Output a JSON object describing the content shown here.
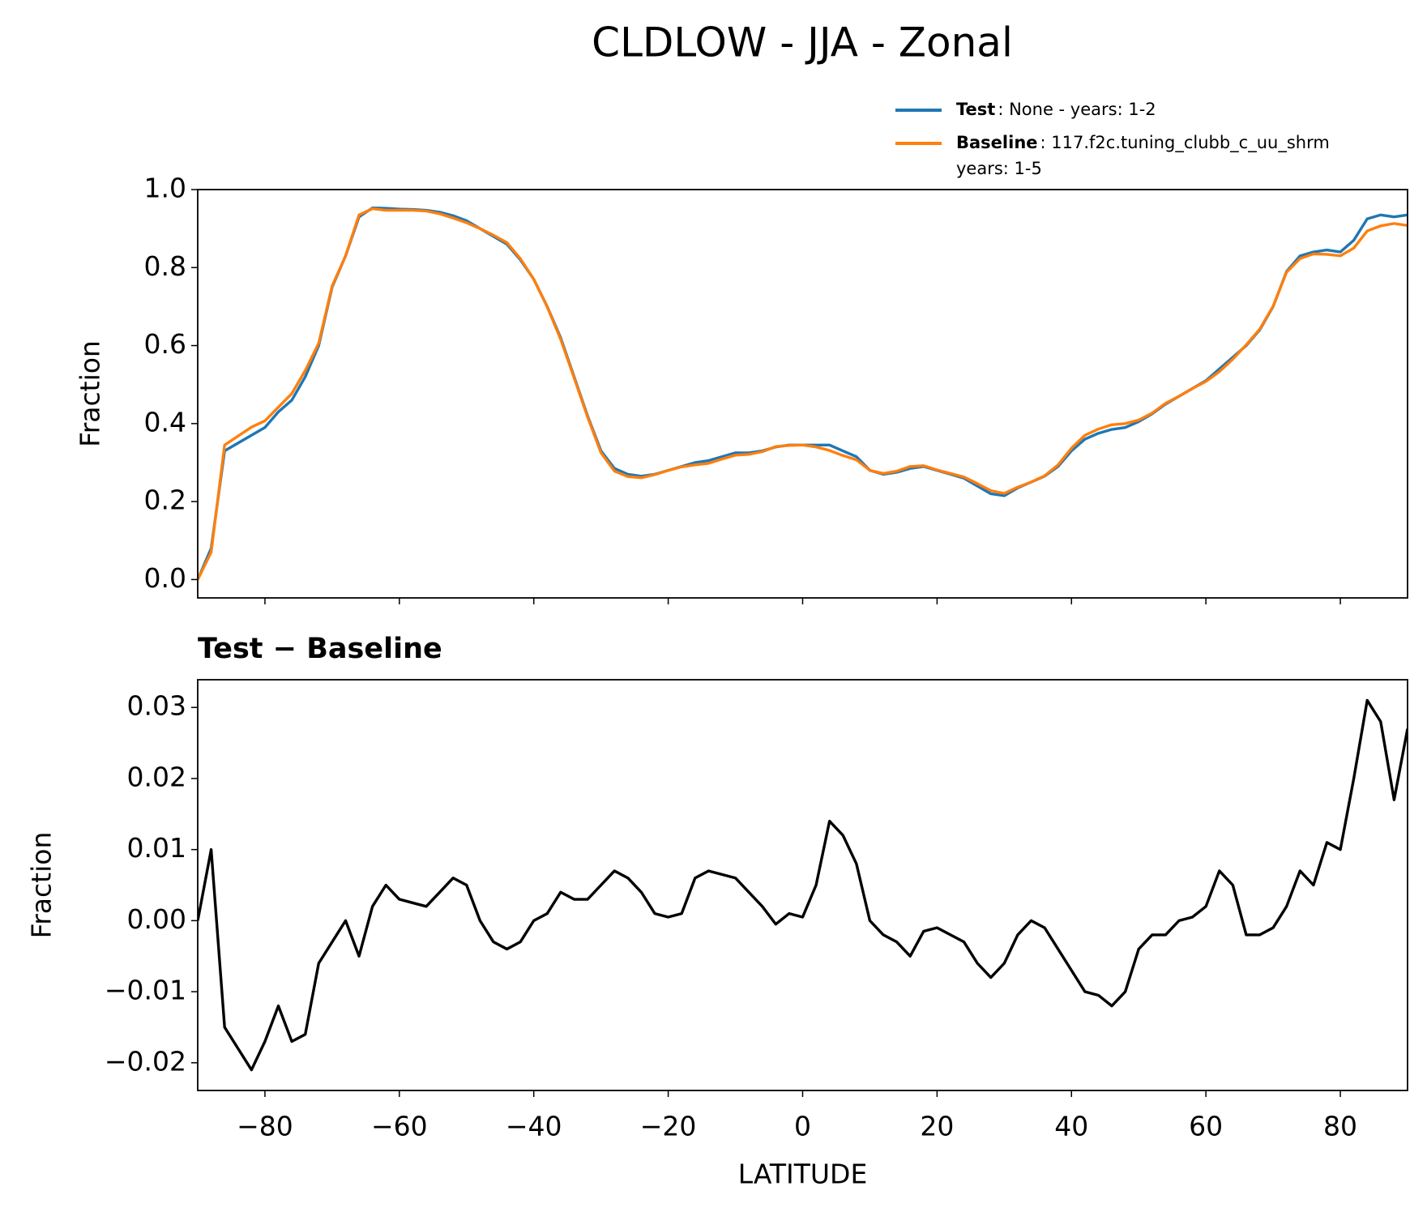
{
  "title": "CLDLOW - JJA - Zonal",
  "chart_data": [
    {
      "type": "line",
      "ylabel": "Fraction",
      "x": [
        -90,
        -88,
        -86,
        -84,
        -82,
        -80,
        -78,
        -76,
        -74,
        -72,
        -70,
        -68,
        -66,
        -64,
        -62,
        -60,
        -58,
        -56,
        -54,
        -52,
        -50,
        -48,
        -46,
        -44,
        -42,
        -40,
        -38,
        -36,
        -34,
        -32,
        -30,
        -28,
        -26,
        -24,
        -22,
        -20,
        -18,
        -16,
        -14,
        -12,
        -10,
        -8,
        -6,
        -4,
        -2,
        0,
        2,
        4,
        6,
        8,
        10,
        12,
        14,
        16,
        18,
        20,
        22,
        24,
        26,
        28,
        30,
        32,
        34,
        36,
        38,
        40,
        42,
        44,
        46,
        48,
        50,
        52,
        54,
        56,
        58,
        60,
        62,
        64,
        66,
        68,
        70,
        72,
        74,
        76,
        78,
        80,
        82,
        84,
        86,
        88,
        90
      ],
      "series": [
        {
          "name": "Test",
          "legend_text": [
            ": None - years: 1-2"
          ],
          "color": "#1f77b4",
          "values": [
            0.0,
            0.08,
            0.33,
            0.35,
            0.37,
            0.39,
            0.43,
            0.46,
            0.52,
            0.6,
            0.75,
            0.83,
            0.93,
            0.953,
            0.952,
            0.95,
            0.949,
            0.947,
            0.942,
            0.933,
            0.92,
            0.9,
            0.88,
            0.86,
            0.82,
            0.77,
            0.7,
            0.62,
            0.52,
            0.42,
            0.33,
            0.285,
            0.27,
            0.265,
            0.27,
            0.28,
            0.29,
            0.3,
            0.305,
            0.315,
            0.325,
            0.325,
            0.33,
            0.34,
            0.345,
            0.345,
            0.345,
            0.345,
            0.33,
            0.315,
            0.28,
            0.27,
            0.275,
            0.285,
            0.29,
            0.28,
            0.27,
            0.26,
            0.24,
            0.22,
            0.215,
            0.235,
            0.25,
            0.265,
            0.29,
            0.33,
            0.36,
            0.375,
            0.385,
            0.39,
            0.405,
            0.425,
            0.45,
            0.47,
            0.49,
            0.51,
            0.54,
            0.57,
            0.6,
            0.64,
            0.7,
            0.79,
            0.83,
            0.84,
            0.845,
            0.84,
            0.87,
            0.925,
            0.935,
            0.93,
            0.935
          ]
        },
        {
          "name": "Baseline",
          "legend_text": [
            ": 117.f2c.tuning_clubb_c_uu_shrm",
            "years: 1-5"
          ],
          "color": "#ff7f0e",
          "values": [
            0.0,
            0.07,
            0.345,
            0.368,
            0.391,
            0.407,
            0.442,
            0.477,
            0.536,
            0.606,
            0.753,
            0.83,
            0.935,
            0.951,
            0.947,
            0.947,
            0.947,
            0.945,
            0.938,
            0.927,
            0.915,
            0.9,
            0.883,
            0.864,
            0.823,
            0.77,
            0.699,
            0.616,
            0.517,
            0.417,
            0.325,
            0.278,
            0.264,
            0.261,
            0.269,
            0.28,
            0.289,
            0.294,
            0.298,
            0.309,
            0.319,
            0.321,
            0.328,
            0.341,
            0.344,
            0.345,
            0.34,
            0.331,
            0.318,
            0.307,
            0.28,
            0.272,
            0.278,
            0.29,
            0.292,
            0.281,
            0.272,
            0.263,
            0.246,
            0.228,
            0.221,
            0.237,
            0.25,
            0.266,
            0.294,
            0.337,
            0.37,
            0.386,
            0.397,
            0.4,
            0.409,
            0.427,
            0.452,
            0.47,
            0.49,
            0.508,
            0.533,
            0.565,
            0.602,
            0.642,
            0.701,
            0.788,
            0.823,
            0.835,
            0.834,
            0.83,
            0.85,
            0.894,
            0.907,
            0.913,
            0.908
          ]
        }
      ],
      "xlim": [
        -90,
        90
      ],
      "xticks": [
        -80,
        -60,
        -40,
        -20,
        0,
        20,
        40,
        60,
        80
      ],
      "show_xtick_labels": false,
      "ylim": [
        -0.047,
        1.0
      ],
      "yticks": [
        {
          "value": 0,
          "label": "0.0"
        },
        0.2,
        0.4,
        0.6,
        0.8,
        {
          "value": 1,
          "label": "1.0"
        }
      ],
      "legend": "upper right"
    },
    {
      "type": "line",
      "title": "Test − Baseline",
      "ylabel": "Fraction",
      "xlabel": "LATITUDE",
      "x": [
        -90,
        -88,
        -86,
        -84,
        -82,
        -80,
        -78,
        -76,
        -74,
        -72,
        -70,
        -68,
        -66,
        -64,
        -62,
        -60,
        -58,
        -56,
        -54,
        -52,
        -50,
        -48,
        -46,
        -44,
        -42,
        -40,
        -38,
        -36,
        -34,
        -32,
        -30,
        -28,
        -26,
        -24,
        -22,
        -20,
        -18,
        -16,
        -14,
        -12,
        -10,
        -8,
        -6,
        -4,
        -2,
        0,
        2,
        4,
        6,
        8,
        10,
        12,
        14,
        16,
        18,
        20,
        22,
        24,
        26,
        28,
        30,
        32,
        34,
        36,
        38,
        40,
        42,
        44,
        46,
        48,
        50,
        52,
        54,
        56,
        58,
        60,
        62,
        64,
        66,
        68,
        70,
        72,
        74,
        76,
        78,
        80,
        82,
        84,
        86,
        88,
        90
      ],
      "series": [
        {
          "color": "#000000",
          "values": [
            0.0,
            0.01,
            -0.015,
            -0.018,
            -0.021,
            -0.017,
            -0.012,
            -0.017,
            -0.016,
            -0.006,
            -0.003,
            0.0,
            -0.005,
            0.002,
            0.005,
            0.003,
            0.0025,
            0.002,
            0.004,
            0.006,
            0.005,
            0.0,
            -0.003,
            -0.004,
            -0.003,
            0.0,
            0.001,
            0.004,
            0.003,
            0.003,
            0.005,
            0.007,
            0.006,
            0.004,
            0.001,
            0.0005,
            0.001,
            0.006,
            0.007,
            0.0065,
            0.006,
            0.004,
            0.002,
            -0.0005,
            0.001,
            0.0005,
            0.005,
            0.014,
            0.012,
            0.008,
            0.0,
            -0.002,
            -0.003,
            -0.005,
            -0.0015,
            -0.001,
            -0.002,
            -0.003,
            -0.006,
            -0.008,
            -0.006,
            -0.002,
            0.0,
            -0.001,
            -0.004,
            -0.007,
            -0.01,
            -0.0105,
            -0.012,
            -0.01,
            -0.004,
            -0.002,
            -0.002,
            0.0,
            0.0005,
            0.002,
            0.007,
            0.005,
            -0.002,
            -0.002,
            -0.001,
            0.002,
            0.007,
            0.005,
            0.011,
            0.01,
            0.02,
            0.031,
            0.028,
            0.017,
            0.027
          ]
        }
      ],
      "xlim": [
        -90,
        90
      ],
      "xticks": [
        {
          "value": -80,
          "label": "−80"
        },
        {
          "value": -60,
          "label": "−60"
        },
        {
          "value": -40,
          "label": "−40"
        },
        {
          "value": -20,
          "label": "−20"
        },
        0,
        20,
        40,
        60,
        80
      ],
      "show_xtick_labels": true,
      "ylim": [
        -0.0239,
        0.0339
      ],
      "yticks": [
        {
          "value": -0.02,
          "label": "−0.02"
        },
        {
          "value": -0.01,
          "label": "−0.01"
        },
        {
          "value": 0,
          "label": "0.00"
        },
        0.01,
        0.02,
        0.03
      ]
    }
  ]
}
